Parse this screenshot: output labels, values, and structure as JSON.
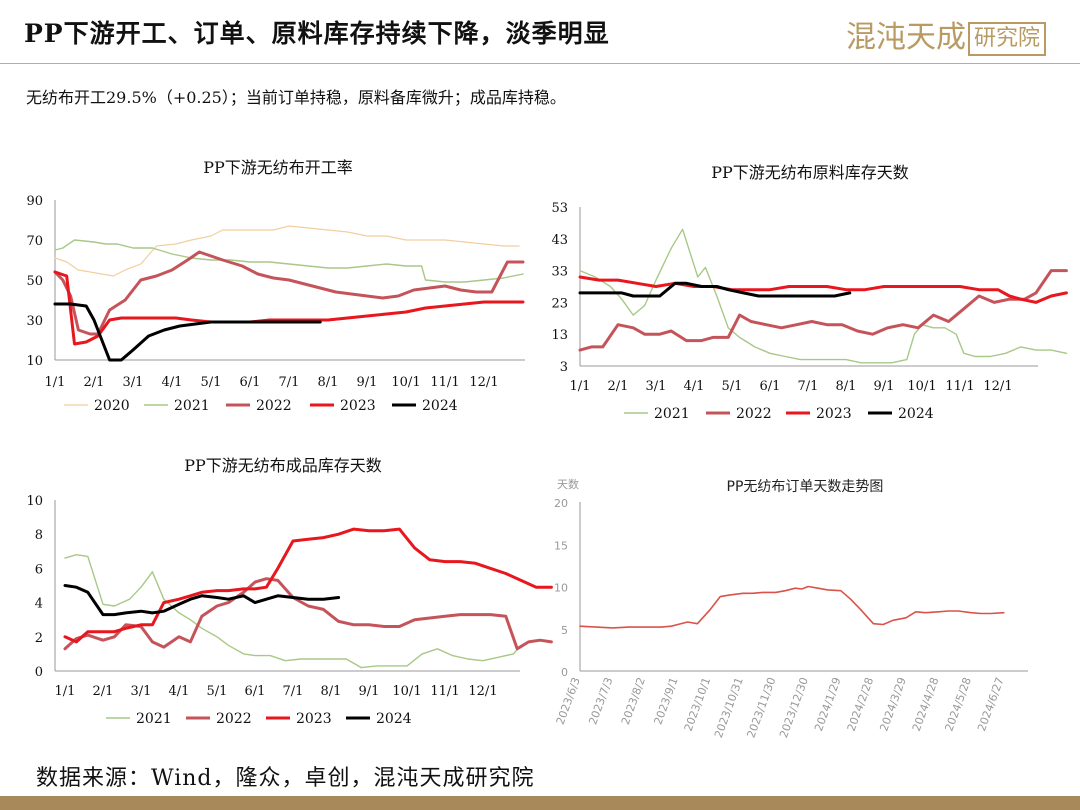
{
  "header": {
    "title": "PP下游开工、订单、原料库存持续下降，淡季明显"
  },
  "logo": {
    "main": "混沌天成",
    "box": "研究院"
  },
  "subtitle": "无纺布开工29.5%（+0.25）；当前订单持稳，原料备库微升；成品库持稳。",
  "footer": {
    "source": "数据来源：Wind，隆众，卓创，混沌天成研究院"
  },
  "colors": {
    "2020": "#f2cfa0",
    "2021": "#a8c887",
    "2022": "#c5545a",
    "2023": "#e8161d",
    "2024": "#000000",
    "order": "#d9534a"
  },
  "chart_data": [
    {
      "type": "line",
      "title": "PP下游无纺布开工率",
      "x_ticks": [
        "1/1",
        "2/1",
        "3/1",
        "4/1",
        "5/1",
        "6/1",
        "7/1",
        "8/1",
        "9/1",
        "10/1",
        "11/1",
        "12/1"
      ],
      "ylim": [
        10,
        90
      ],
      "y_ticks": [
        "90",
        "70",
        "50",
        "30",
        "10"
      ],
      "legend": [
        "2020",
        "2021",
        "2022",
        "2023",
        "2024"
      ],
      "legend_placement": "bottom",
      "grid": false,
      "series": [
        {
          "name": "2020",
          "x": [
            0,
            0.3,
            0.6,
            0.9,
            1.2,
            1.5,
            1.8,
            2.2,
            2.6,
            3.1,
            3.5,
            4,
            4.3,
            5,
            5.6,
            6,
            6.5,
            7,
            7.5,
            8,
            8.5,
            9,
            9.5,
            10,
            10.5,
            11,
            11.5,
            11.9
          ],
          "y": [
            61,
            59,
            55,
            54,
            53,
            52,
            55,
            58,
            67,
            68,
            70,
            72,
            75,
            75,
            75,
            77,
            76,
            75,
            74,
            72,
            72,
            70,
            70,
            70,
            69,
            68,
            67,
            67
          ]
        },
        {
          "name": "2021",
          "x": [
            0,
            0.2,
            0.5,
            1,
            1.3,
            1.6,
            2,
            2.5,
            3,
            3.5,
            4,
            4.5,
            5,
            5.5,
            6,
            6.5,
            7,
            7.5,
            8,
            8.5,
            9,
            9.4,
            9.5,
            10,
            10.5,
            11,
            11.5,
            12
          ],
          "y": [
            65,
            66,
            70,
            69,
            68,
            68,
            66,
            66,
            63,
            61,
            60,
            60,
            59,
            59,
            58,
            57,
            56,
            56,
            57,
            58,
            57,
            57,
            50,
            49,
            49,
            50,
            51,
            53
          ]
        },
        {
          "name": "2022",
          "x": [
            0,
            0.2,
            0.4,
            0.6,
            0.9,
            1.1,
            1.4,
            1.8,
            2.2,
            2.6,
            3,
            3.4,
            3.7,
            4,
            4.3,
            4.8,
            5.2,
            5.6,
            6,
            6.4,
            6.8,
            7.2,
            7.6,
            8,
            8.4,
            8.8,
            9.2,
            9.6,
            10,
            10.4,
            10.8,
            11.2,
            11.6,
            12
          ],
          "y": [
            54,
            50,
            42,
            25,
            23,
            23,
            35,
            40,
            50,
            52,
            55,
            60,
            64,
            62,
            60,
            57,
            53,
            51,
            50,
            48,
            46,
            44,
            43,
            42,
            41,
            42,
            45,
            46,
            47,
            45,
            44,
            44,
            59,
            59
          ]
        },
        {
          "name": "2023",
          "x": [
            0,
            0.3,
            0.5,
            0.8,
            1.1,
            1.4,
            1.7,
            2,
            2.3,
            2.7,
            3.1,
            3.5,
            4,
            4.5,
            5,
            5.5,
            6,
            6.5,
            7,
            7.5,
            8,
            8.5,
            9,
            9.5,
            10,
            10.5,
            11,
            11.5,
            12
          ],
          "y": [
            54,
            52,
            18,
            19,
            22,
            30,
            31,
            31,
            31,
            31,
            31,
            30,
            29,
            29,
            29,
            30,
            30,
            30,
            30,
            31,
            32,
            33,
            34,
            36,
            37,
            38,
            39,
            39,
            39
          ]
        },
        {
          "name": "2024",
          "x": [
            0,
            0.4,
            0.8,
            1,
            1.2,
            1.4,
            1.7,
            2,
            2.4,
            2.8,
            3.2,
            3.6,
            4,
            4.4,
            4.8,
            5.2,
            5.6,
            6,
            6.4,
            6.8
          ],
          "y": [
            38,
            38,
            37,
            30,
            20,
            10,
            10,
            15,
            22,
            25,
            27,
            28,
            29,
            29,
            29,
            29,
            29,
            29,
            29,
            29
          ]
        }
      ]
    },
    {
      "type": "line",
      "title": "PP下游无纺布原料库存天数",
      "x_ticks": [
        "1/1",
        "2/1",
        "3/1",
        "4/1",
        "5/1",
        "6/1",
        "7/1",
        "8/1",
        "9/1",
        "10/1",
        "11/1",
        "12/1"
      ],
      "ylim": [
        3,
        53
      ],
      "y_ticks": [
        "53",
        "43",
        "33",
        "23",
        "13",
        "3"
      ],
      "legend": [
        "2021",
        "2022",
        "2023",
        "2024"
      ],
      "legend_placement": "bottom",
      "grid": false,
      "series": [
        {
          "name": "2021",
          "x": [
            0,
            0.4,
            0.8,
            1.1,
            1.4,
            1.7,
            2,
            2.4,
            2.7,
            3.1,
            3.3,
            3.6,
            3.9,
            4.2,
            4.6,
            5,
            5.4,
            5.8,
            6.2,
            6.6,
            7,
            7.4,
            7.8,
            8.2,
            8.6,
            8.8,
            9,
            9.3,
            9.6,
            9.9,
            10.1,
            10.4,
            10.8,
            11.2,
            11.6,
            12,
            12.4,
            12.8
          ],
          "y": [
            33,
            31,
            28,
            24,
            19,
            22,
            30,
            40,
            46,
            31,
            34,
            25,
            15,
            12,
            9,
            7,
            6,
            5,
            5,
            5,
            5,
            4,
            4,
            4,
            5,
            13,
            16,
            15,
            15,
            13,
            7,
            6,
            6,
            7,
            9,
            8,
            8,
            7
          ]
        },
        {
          "name": "2022",
          "x": [
            0,
            0.3,
            0.6,
            1,
            1.4,
            1.7,
            2.1,
            2.4,
            2.8,
            3.2,
            3.5,
            3.9,
            4.2,
            4.5,
            4.9,
            5.3,
            5.7,
            6.1,
            6.5,
            6.9,
            7.3,
            7.7,
            8.1,
            8.5,
            8.9,
            9.3,
            9.7,
            10.1,
            10.5,
            10.9,
            11.3,
            11.7,
            12,
            12.4,
            12.8
          ],
          "y": [
            8,
            9,
            9,
            16,
            15,
            13,
            13,
            14,
            11,
            11,
            12,
            12,
            19,
            17,
            16,
            15,
            16,
            17,
            16,
            16,
            14,
            13,
            15,
            16,
            15,
            19,
            17,
            21,
            25,
            23,
            24,
            24,
            26,
            33,
            33
          ]
        },
        {
          "name": "2023",
          "x": [
            0,
            0.5,
            1,
            1.5,
            2,
            2.5,
            3,
            3.5,
            4,
            4.5,
            5,
            5.5,
            6,
            6.5,
            7,
            7.5,
            8,
            8.5,
            9,
            9.5,
            10,
            10.5,
            11,
            11.3,
            11.6,
            12,
            12.4,
            12.8
          ],
          "y": [
            31,
            30,
            30,
            29,
            28,
            29,
            28,
            28,
            27,
            27,
            27,
            28,
            28,
            28,
            27,
            27,
            28,
            28,
            28,
            28,
            28,
            27,
            27,
            25,
            24,
            23,
            25,
            26
          ]
        },
        {
          "name": "2024",
          "x": [
            0,
            0.4,
            0.8,
            1.1,
            1.4,
            1.8,
            2.1,
            2.5,
            2.8,
            3.2,
            3.6,
            3.9,
            4.3,
            4.7,
            5.1,
            5.5,
            5.9,
            6.3,
            6.7,
            7.1
          ],
          "y": [
            26,
            26,
            26,
            26,
            25,
            25,
            25,
            29,
            29,
            28,
            28,
            27,
            26,
            25,
            25,
            25,
            25,
            25,
            25,
            26
          ]
        }
      ]
    },
    {
      "type": "line",
      "title": "PP下游无纺布成品库存天数",
      "x_ticks": [
        "1/1",
        "2/1",
        "3/1",
        "4/1",
        "5/1",
        "6/1",
        "7/1",
        "8/1",
        "9/1",
        "10/1",
        "11/1",
        "12/1"
      ],
      "ylim": [
        0,
        10
      ],
      "y_ticks": [
        "10",
        "8",
        "6",
        "4",
        "2",
        "0"
      ],
      "legend": [
        "2021",
        "2022",
        "2023",
        "2024"
      ],
      "legend_placement": "bottom",
      "grid": false,
      "series": [
        {
          "name": "2021",
          "x": [
            0,
            0.3,
            0.6,
            1,
            1.3,
            1.7,
            2,
            2.3,
            2.6,
            3,
            3.3,
            3.6,
            4,
            4.3,
            4.7,
            5,
            5.4,
            5.8,
            6.2,
            6.6,
            7,
            7.4,
            7.8,
            8.2,
            8.6,
            9,
            9.4,
            9.8,
            10.2,
            10.6,
            11,
            11.4,
            11.8,
            12
          ],
          "y": [
            6.6,
            6.8,
            6.7,
            3.9,
            3.8,
            4.2,
            4.9,
            5.8,
            4.2,
            3.4,
            3.0,
            2.5,
            2.0,
            1.5,
            1.0,
            0.9,
            0.9,
            0.6,
            0.7,
            0.7,
            0.7,
            0.7,
            0.2,
            0.3,
            0.3,
            0.3,
            1.0,
            1.3,
            0.9,
            0.7,
            0.6,
            0.8,
            1.0,
            1.5
          ]
        },
        {
          "name": "2022",
          "x": [
            0,
            0.3,
            0.6,
            1,
            1.3,
            1.6,
            2,
            2.3,
            2.6,
            3,
            3.3,
            3.6,
            4,
            4.3,
            4.7,
            5,
            5.3,
            5.6,
            6,
            6.4,
            6.8,
            7.2,
            7.6,
            8,
            8.4,
            8.8,
            9.2,
            9.6,
            10,
            10.4,
            10.8,
            11.2,
            11.6,
            11.9,
            12.2,
            12.5,
            12.8
          ],
          "y": [
            1.3,
            1.9,
            2.1,
            1.8,
            2.0,
            2.7,
            2.6,
            1.7,
            1.4,
            2.0,
            1.7,
            3.2,
            3.8,
            4.0,
            4.6,
            5.2,
            5.4,
            5.3,
            4.3,
            3.8,
            3.6,
            2.9,
            2.7,
            2.7,
            2.6,
            2.6,
            3.0,
            3.1,
            3.2,
            3.3,
            3.3,
            3.3,
            3.2,
            1.3,
            1.7,
            1.8,
            1.7
          ]
        },
        {
          "name": "2023",
          "x": [
            0,
            0.3,
            0.6,
            1,
            1.3,
            1.6,
            2,
            2.3,
            2.6,
            3,
            3.3,
            3.6,
            4,
            4.3,
            4.7,
            5,
            5.3,
            5.6,
            6,
            6.4,
            6.8,
            7.2,
            7.6,
            8,
            8.4,
            8.8,
            9.2,
            9.6,
            10,
            10.4,
            10.8,
            11.2,
            11.6,
            12,
            12.4,
            12.8
          ],
          "y": [
            2.0,
            1.7,
            2.3,
            2.3,
            2.3,
            2.5,
            2.7,
            2.7,
            4.0,
            4.2,
            4.4,
            4.6,
            4.7,
            4.7,
            4.8,
            4.8,
            4.9,
            6.0,
            7.6,
            7.7,
            7.8,
            8.0,
            8.3,
            8.2,
            8.2,
            8.3,
            7.2,
            6.5,
            6.4,
            6.4,
            6.3,
            6.0,
            5.7,
            5.3,
            4.9,
            4.9
          ]
        },
        {
          "name": "2024",
          "x": [
            0,
            0.3,
            0.6,
            1,
            1.3,
            1.6,
            2,
            2.3,
            2.6,
            3,
            3.3,
            3.6,
            4,
            4.3,
            4.7,
            5,
            5.3,
            5.6,
            6,
            6.4,
            6.8,
            7.2
          ],
          "y": [
            5.0,
            4.9,
            4.6,
            3.3,
            3.3,
            3.4,
            3.5,
            3.4,
            3.5,
            3.9,
            4.2,
            4.4,
            4.3,
            4.2,
            4.4,
            4.0,
            4.2,
            4.4,
            4.3,
            4.2,
            4.2,
            4.3
          ]
        }
      ]
    },
    {
      "type": "line",
      "title": "PP无纺布订单天数走势图",
      "ylabel": "天数",
      "ylim": [
        0,
        20
      ],
      "y_ticks": [
        "20",
        "15",
        "10",
        "5",
        "0"
      ],
      "x_ticks": [
        "2023/6/3",
        "2023/7/3",
        "2023/8/2",
        "2023/9/1",
        "2023/10/1",
        "2023/10/31",
        "2023/11/30",
        "2023/12/30",
        "2024/1/29",
        "2024/2/28",
        "2024/3/29",
        "2024/4/28",
        "2024/5/28",
        "2024/6/27"
      ],
      "grid": false,
      "series": [
        {
          "name": "",
          "x": [
            0,
            0.5,
            1,
            1.5,
            2,
            2.5,
            2.8,
            3,
            3.3,
            3.6,
            4,
            4.3,
            4.6,
            5,
            5.3,
            5.6,
            6,
            6.3,
            6.6,
            6.8,
            7,
            7.3,
            7.6,
            8,
            8.3,
            8.6,
            9,
            9.3,
            9.6,
            10,
            10.3,
            10.6,
            11,
            11.3,
            11.6,
            12,
            12.3,
            12.6,
            13
          ],
          "y": [
            5.3,
            5.2,
            5.1,
            5.2,
            5.2,
            5.2,
            5.3,
            5.5,
            5.8,
            5.6,
            7.3,
            8.8,
            9.0,
            9.2,
            9.2,
            9.3,
            9.3,
            9.5,
            9.8,
            9.7,
            10.0,
            9.8,
            9.6,
            9.5,
            8.5,
            7.3,
            5.6,
            5.5,
            6.0,
            6.3,
            7.0,
            6.9,
            7.0,
            7.1,
            7.1,
            6.9,
            6.8,
            6.8,
            6.9
          ]
        }
      ]
    }
  ]
}
